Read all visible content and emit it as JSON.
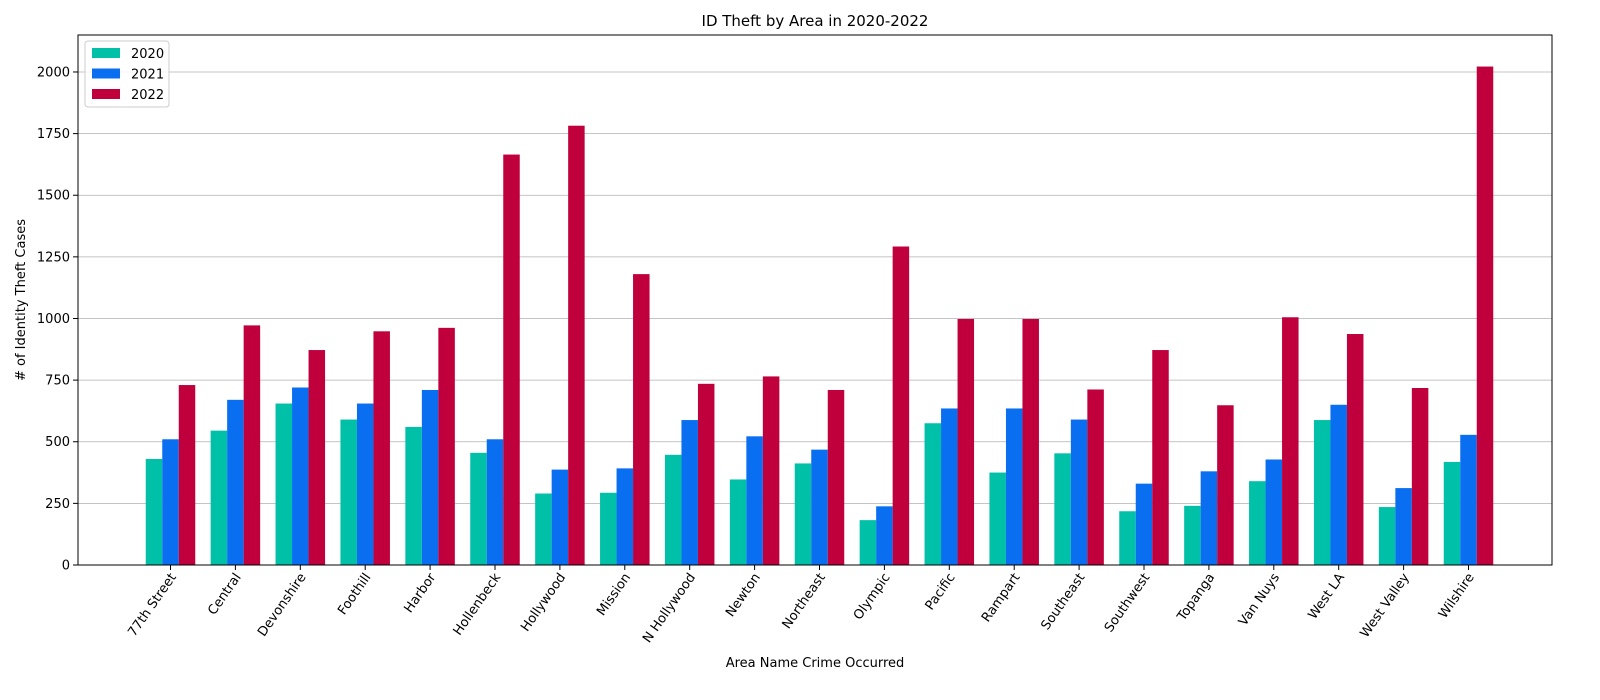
{
  "chart_data": {
    "type": "bar",
    "title": "ID Theft by Area in 2020-2022",
    "xlabel": "Area Name Crime Occurred",
    "ylabel": "# of Identity Theft Cases",
    "ylim": [
      0,
      2150
    ],
    "yticks": [
      "0",
      "250",
      "500",
      "750",
      "1000",
      "1250",
      "1500",
      "1750",
      "2000"
    ],
    "grid": "horizontal",
    "legend_position": "top-left",
    "categories": [
      "77th Street",
      "Central",
      "Devonshire",
      "Foothill",
      "Harbor",
      "Hollenbeck",
      "Hollywood",
      "Mission",
      "N Hollywood",
      "Newton",
      "Northeast",
      "Olympic",
      "Pacific",
      "Rampart",
      "Southeast",
      "Southwest",
      "Topanga",
      "Van Nuys",
      "West LA",
      "West Valley",
      "Wilshire"
    ],
    "series": [
      {
        "name": "2020",
        "color": "#00c0a8",
        "values": [
          430,
          545,
          655,
          590,
          560,
          455,
          290,
          293,
          447,
          347,
          412,
          182,
          575,
          375,
          453,
          218,
          240,
          340,
          588,
          235,
          418
        ]
      },
      {
        "name": "2021",
        "color": "#0a6ef0",
        "values": [
          510,
          670,
          720,
          655,
          710,
          510,
          387,
          392,
          588,
          522,
          468,
          238,
          635,
          635,
          590,
          330,
          380,
          428,
          650,
          312,
          528
        ]
      },
      {
        "name": "2022",
        "color": "#c0003c",
        "values": [
          730,
          972,
          872,
          948,
          962,
          1665,
          1782,
          1180,
          735,
          765,
          710,
          1292,
          998,
          998,
          712,
          872,
          648,
          1005,
          937,
          718,
          2022
        ]
      }
    ]
  }
}
